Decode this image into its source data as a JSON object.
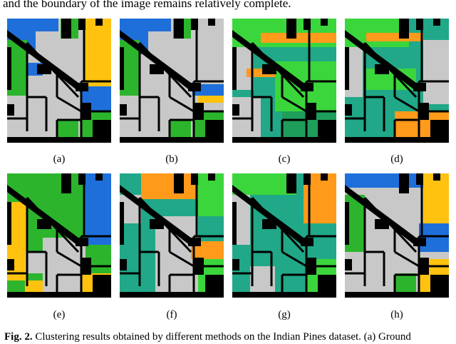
{
  "text": {
    "top_line": "and the boundary of the image remains relatively complete.",
    "caption_fig": "Fig. 2.",
    "caption_text": " Clustering results obtained by different methods on the Indian Pines dataset. (a) Ground"
  },
  "panels": [
    {
      "label": "(a)",
      "base": "#c8c8c8",
      "regions": [
        {
          "color": "#1e6fd9",
          "points": [
            [
              0,
              0
            ],
            [
              72,
              0
            ],
            [
              72,
              18
            ],
            [
              40,
              18
            ],
            [
              40,
              50
            ],
            [
              0,
              50
            ]
          ]
        },
        {
          "color": "#ffc20e",
          "points": [
            [
              108,
              0
            ],
            [
              146,
              0
            ],
            [
              146,
              120
            ],
            [
              108,
              95
            ]
          ]
        },
        {
          "color": "#2cb52c",
          "points": [
            [
              75,
              0
            ],
            [
              100,
              0
            ],
            [
              100,
              28
            ],
            [
              75,
              28
            ]
          ]
        },
        {
          "color": "#2cb52c",
          "points": [
            [
              0,
              30
            ],
            [
              28,
              30
            ],
            [
              28,
              108
            ],
            [
              0,
              108
            ]
          ]
        },
        {
          "color": "#1e6fd9",
          "points": [
            [
              28,
              62
            ],
            [
              50,
              62
            ],
            [
              50,
              80
            ],
            [
              28,
              80
            ]
          ]
        },
        {
          "color": "#1e6fd9",
          "points": [
            [
              104,
              95
            ],
            [
              146,
              95
            ],
            [
              146,
              130
            ],
            [
              104,
              130
            ]
          ]
        },
        {
          "color": "#2cb52c",
          "points": [
            [
              70,
              142
            ],
            [
              100,
              142
            ],
            [
              100,
              174
            ],
            [
              70,
              174
            ]
          ]
        },
        {
          "color": "#2cb52c",
          "points": [
            [
              104,
              130
            ],
            [
              146,
              130
            ],
            [
              146,
              174
            ],
            [
              104,
              174
            ]
          ]
        }
      ]
    },
    {
      "label": "(b)",
      "base": "#c8c8c8",
      "regions": [
        {
          "color": "#1e6fd9",
          "points": [
            [
              0,
              0
            ],
            [
              72,
              0
            ],
            [
              72,
              18
            ],
            [
              40,
              18
            ],
            [
              40,
              50
            ],
            [
              0,
              50
            ]
          ]
        },
        {
          "color": "#2cb52c",
          "points": [
            [
              0,
              30
            ],
            [
              28,
              30
            ],
            [
              28,
              108
            ],
            [
              0,
              108
            ]
          ]
        },
        {
          "color": "#2cb52c",
          "points": [
            [
              75,
              0
            ],
            [
              100,
              0
            ],
            [
              100,
              28
            ],
            [
              75,
              28
            ]
          ]
        },
        {
          "color": "#1e6fd9",
          "points": [
            [
              102,
              92
            ],
            [
              146,
              92
            ],
            [
              146,
              108
            ],
            [
              102,
              108
            ]
          ]
        },
        {
          "color": "#ffc20e",
          "points": [
            [
              110,
              108
            ],
            [
              146,
              108
            ],
            [
              146,
              118
            ],
            [
              110,
              118
            ]
          ]
        },
        {
          "color": "#2cb52c",
          "points": [
            [
              70,
              142
            ],
            [
              100,
              142
            ],
            [
              100,
              174
            ],
            [
              70,
              174
            ]
          ]
        },
        {
          "color": "#2cb52c",
          "points": [
            [
              104,
              130
            ],
            [
              146,
              130
            ],
            [
              146,
              174
            ],
            [
              104,
              174
            ]
          ]
        }
      ]
    },
    {
      "label": "(c)",
      "base": "#20a888",
      "regions": [
        {
          "color": "#3bd63b",
          "points": [
            [
              0,
              0
            ],
            [
              146,
              0
            ],
            [
              146,
              40
            ],
            [
              0,
              40
            ]
          ]
        },
        {
          "color": "#ff9a1a",
          "points": [
            [
              40,
              20
            ],
            [
              146,
              20
            ],
            [
              146,
              34
            ],
            [
              40,
              34
            ]
          ]
        },
        {
          "color": "#c8c8c8",
          "points": [
            [
              0,
              40
            ],
            [
              30,
              40
            ],
            [
              30,
              100
            ],
            [
              0,
              100
            ]
          ]
        },
        {
          "color": "#ff9a1a",
          "points": [
            [
              20,
              70
            ],
            [
              60,
              70
            ],
            [
              60,
              82
            ],
            [
              20,
              82
            ]
          ]
        },
        {
          "color": "#3bd63b",
          "points": [
            [
              60,
              60
            ],
            [
              146,
              60
            ],
            [
              146,
              130
            ],
            [
              60,
              130
            ]
          ]
        },
        {
          "color": "#c8c8c8",
          "points": [
            [
              0,
              110
            ],
            [
              40,
              110
            ],
            [
              40,
              174
            ],
            [
              0,
              174
            ]
          ]
        },
        {
          "color": "#1e9e5a",
          "points": [
            [
              70,
              130
            ],
            [
              146,
              130
            ],
            [
              146,
              174
            ],
            [
              70,
              174
            ]
          ]
        }
      ]
    },
    {
      "label": "(d)",
      "base": "#20a888",
      "regions": [
        {
          "color": "#3bd63b",
          "points": [
            [
              0,
              0
            ],
            [
              90,
              0
            ],
            [
              90,
              40
            ],
            [
              0,
              40
            ]
          ]
        },
        {
          "color": "#ff9a1a",
          "points": [
            [
              30,
              20
            ],
            [
              110,
              20
            ],
            [
              110,
              32
            ],
            [
              30,
              32
            ]
          ]
        },
        {
          "color": "#c8c8c8",
          "points": [
            [
              110,
              30
            ],
            [
              146,
              30
            ],
            [
              146,
              120
            ],
            [
              110,
              120
            ]
          ]
        },
        {
          "color": "#c8c8c8",
          "points": [
            [
              0,
              40
            ],
            [
              25,
              40
            ],
            [
              25,
              110
            ],
            [
              0,
              110
            ]
          ]
        },
        {
          "color": "#3bd63b",
          "points": [
            [
              30,
              70
            ],
            [
              100,
              70
            ],
            [
              100,
              100
            ],
            [
              30,
              100
            ]
          ]
        },
        {
          "color": "#ff9a1a",
          "points": [
            [
              70,
              130
            ],
            [
              146,
              130
            ],
            [
              146,
              174
            ],
            [
              70,
              174
            ]
          ]
        }
      ]
    },
    {
      "label": "(e)",
      "base": "#2cb52c",
      "regions": [
        {
          "color": "#1e6fd9",
          "points": [
            [
              110,
              0
            ],
            [
              146,
              0
            ],
            [
              146,
              100
            ],
            [
              110,
              100
            ]
          ]
        },
        {
          "color": "#ffc20e",
          "points": [
            [
              0,
              40
            ],
            [
              28,
              40
            ],
            [
              28,
              150
            ],
            [
              0,
              150
            ]
          ]
        },
        {
          "color": "#c8c8c8",
          "points": [
            [
              50,
              90
            ],
            [
              110,
              90
            ],
            [
              110,
              174
            ],
            [
              50,
              174
            ]
          ]
        },
        {
          "color": "#c8c8c8",
          "points": [
            [
              25,
              110
            ],
            [
              50,
              110
            ],
            [
              50,
              140
            ],
            [
              25,
              140
            ]
          ]
        },
        {
          "color": "#ffc20e",
          "points": [
            [
              25,
              150
            ],
            [
              50,
              150
            ],
            [
              50,
              174
            ],
            [
              25,
              174
            ]
          ]
        },
        {
          "color": "#ffc20e",
          "points": [
            [
              104,
              140
            ],
            [
              146,
              140
            ],
            [
              146,
              174
            ],
            [
              104,
              174
            ]
          ]
        }
      ]
    },
    {
      "label": "(f)",
      "base": "#20a888",
      "regions": [
        {
          "color": "#ff9a1a",
          "points": [
            [
              30,
              0
            ],
            [
              110,
              0
            ],
            [
              110,
              36
            ],
            [
              30,
              36
            ]
          ]
        },
        {
          "color": "#3bd63b",
          "points": [
            [
              110,
              0
            ],
            [
              146,
              0
            ],
            [
              146,
              60
            ],
            [
              110,
              60
            ]
          ]
        },
        {
          "color": "#c8c8c8",
          "points": [
            [
              0,
              30
            ],
            [
              30,
              30
            ],
            [
              30,
              70
            ],
            [
              0,
              70
            ]
          ]
        },
        {
          "color": "#c8c8c8",
          "points": [
            [
              50,
              60
            ],
            [
              110,
              60
            ],
            [
              110,
              174
            ],
            [
              50,
              174
            ]
          ]
        },
        {
          "color": "#ff9a1a",
          "points": [
            [
              100,
              95
            ],
            [
              146,
              95
            ],
            [
              146,
              120
            ],
            [
              100,
              120
            ]
          ]
        },
        {
          "color": "#3bd63b",
          "points": [
            [
              110,
              120
            ],
            [
              146,
              120
            ],
            [
              146,
              174
            ],
            [
              110,
              174
            ]
          ]
        }
      ]
    },
    {
      "label": "(g)",
      "base": "#20a888",
      "regions": [
        {
          "color": "#3bd63b",
          "points": [
            [
              0,
              0
            ],
            [
              90,
              0
            ],
            [
              90,
              30
            ],
            [
              0,
              30
            ]
          ]
        },
        {
          "color": "#ff9a1a",
          "points": [
            [
              100,
              0
            ],
            [
              146,
              0
            ],
            [
              146,
              70
            ],
            [
              100,
              70
            ]
          ]
        },
        {
          "color": "#c8c8c8",
          "points": [
            [
              0,
              30
            ],
            [
              25,
              30
            ],
            [
              25,
              100
            ],
            [
              0,
              100
            ]
          ]
        },
        {
          "color": "#c8c8c8",
          "points": [
            [
              25,
              130
            ],
            [
              60,
              130
            ],
            [
              60,
              174
            ],
            [
              25,
              174
            ]
          ]
        },
        {
          "color": "#3bd63b",
          "points": [
            [
              104,
              120
            ],
            [
              146,
              120
            ],
            [
              146,
              174
            ],
            [
              104,
              174
            ]
          ]
        }
      ]
    },
    {
      "label": "(h)",
      "base": "#c8c8c8",
      "regions": [
        {
          "color": "#1e6fd9",
          "points": [
            [
              0,
              0
            ],
            [
              110,
              0
            ],
            [
              110,
              20
            ],
            [
              0,
              20
            ]
          ]
        },
        {
          "color": "#ffc20e",
          "points": [
            [
              110,
              0
            ],
            [
              146,
              0
            ],
            [
              146,
              70
            ],
            [
              110,
              70
            ]
          ]
        },
        {
          "color": "#2cb52c",
          "points": [
            [
              0,
              30
            ],
            [
              28,
              30
            ],
            [
              28,
              110
            ],
            [
              0,
              110
            ]
          ]
        },
        {
          "color": "#1e6fd9",
          "points": [
            [
              104,
              70
            ],
            [
              146,
              70
            ],
            [
              146,
              110
            ],
            [
              104,
              110
            ]
          ]
        },
        {
          "color": "#2cb52c",
          "points": [
            [
              70,
              140
            ],
            [
              100,
              140
            ],
            [
              100,
              174
            ],
            [
              70,
              174
            ]
          ]
        },
        {
          "color": "#ffc20e",
          "points": [
            [
              104,
              120
            ],
            [
              146,
              120
            ],
            [
              146,
              174
            ],
            [
              104,
              174
            ]
          ]
        }
      ]
    }
  ],
  "boundary_color": "#000000"
}
